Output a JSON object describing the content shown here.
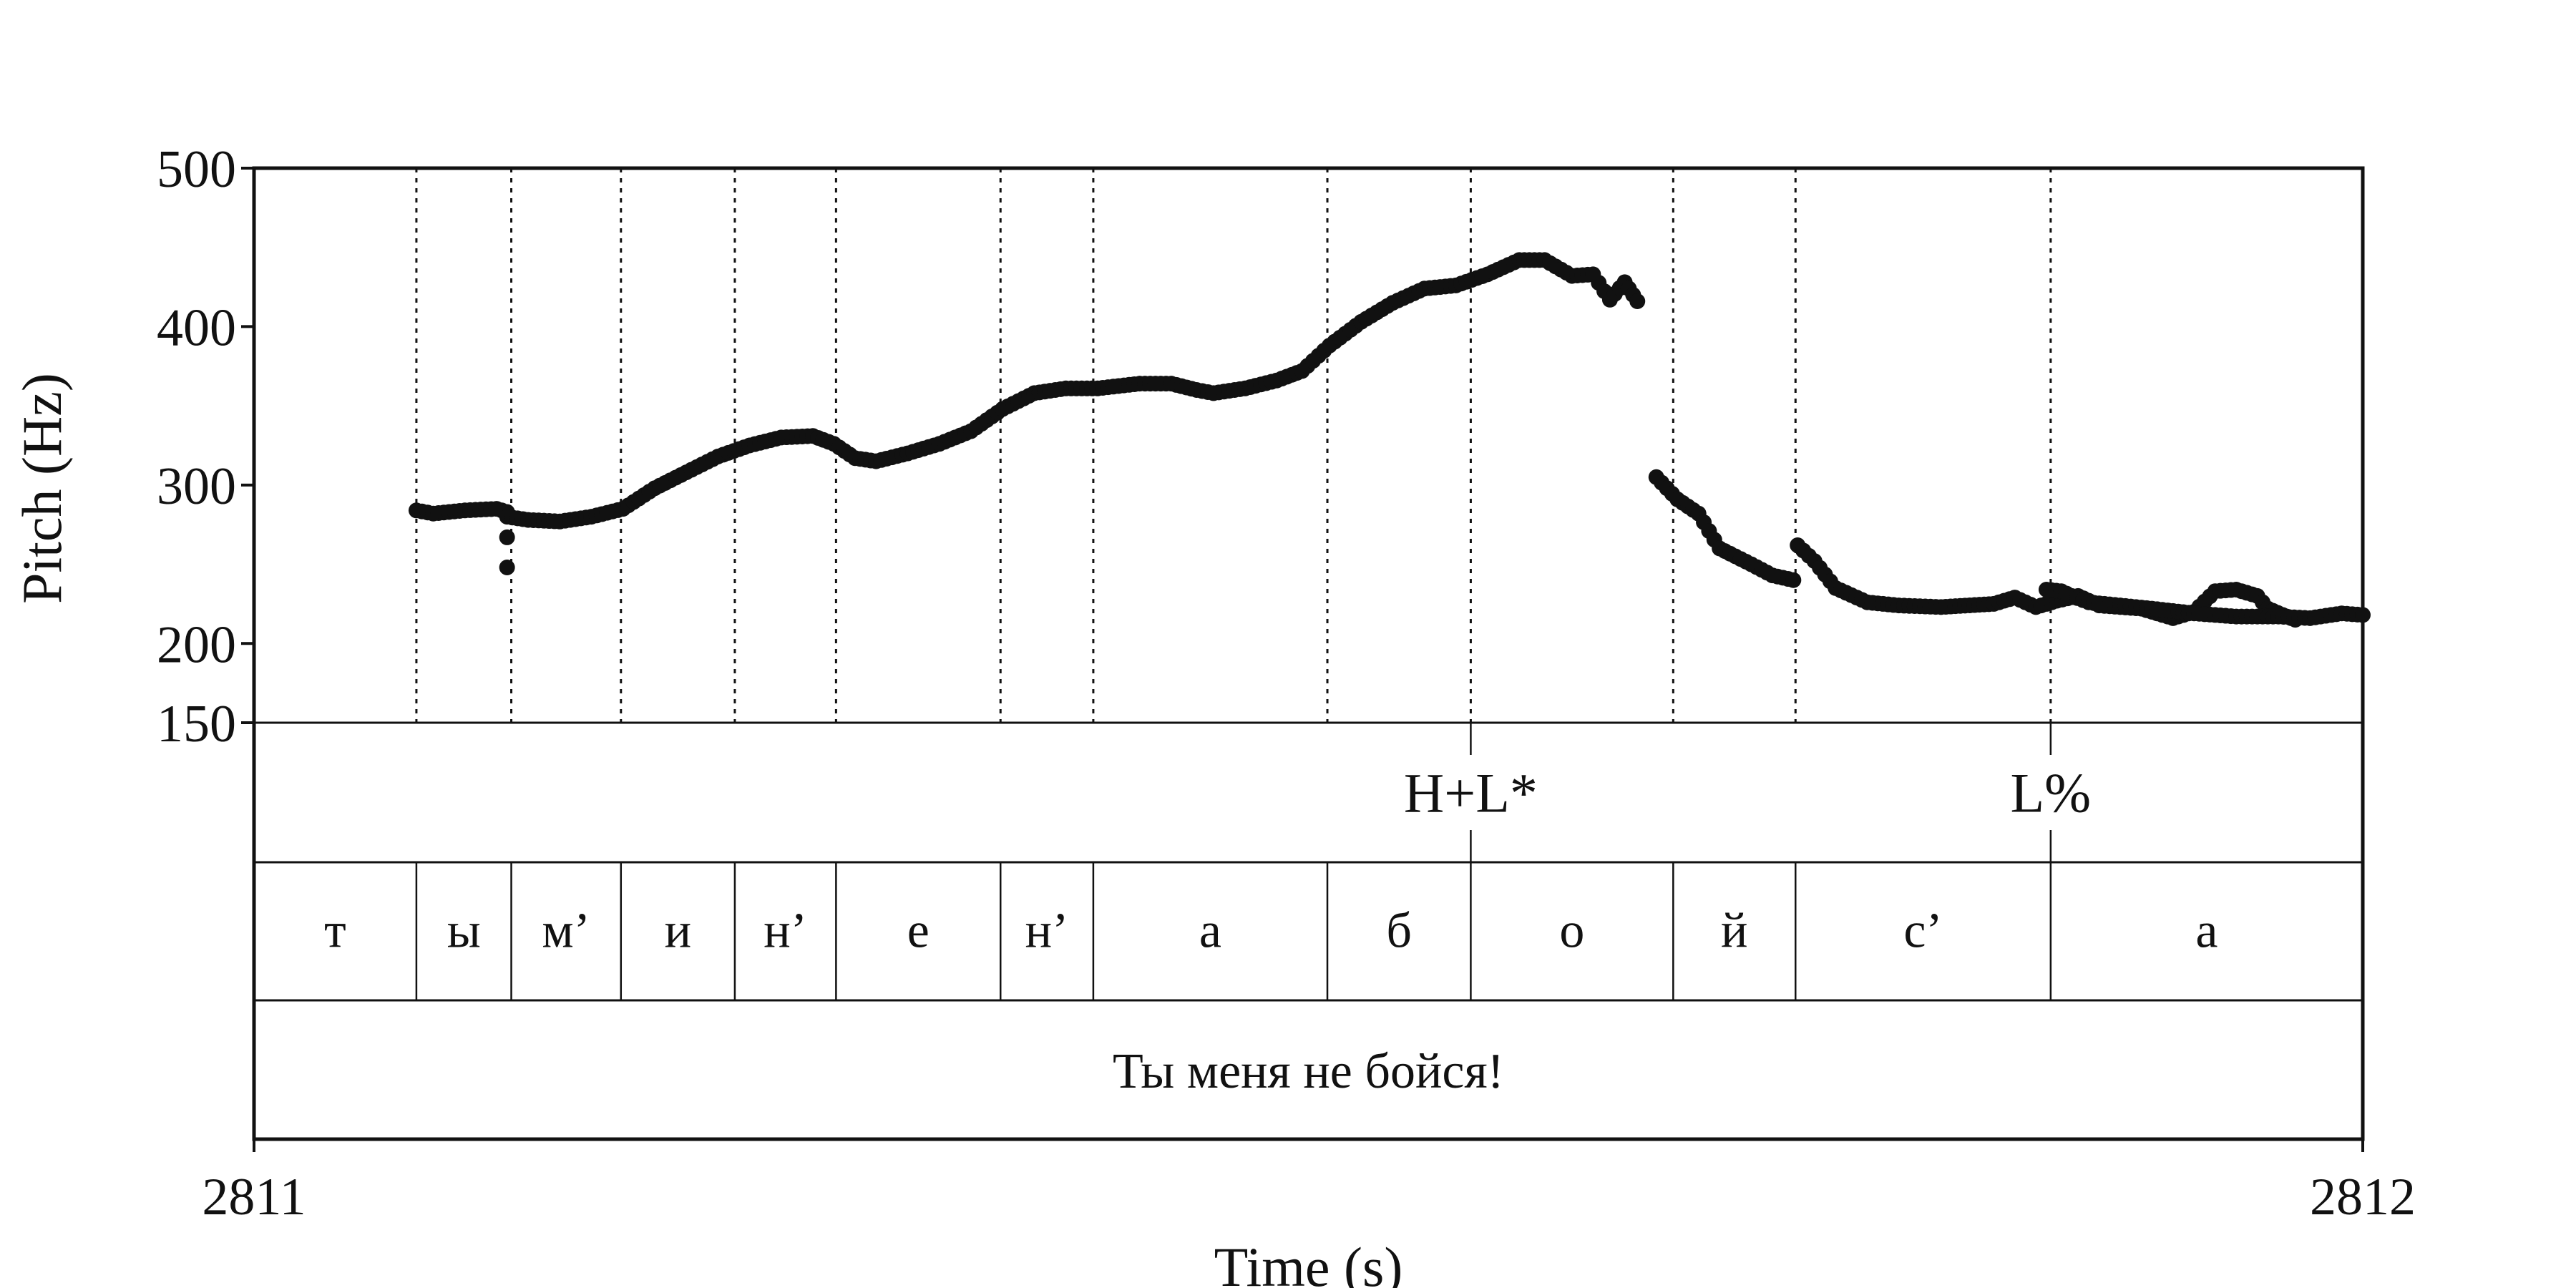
{
  "chart_data": {
    "type": "scatter",
    "ylabel": "Pitch (Hz)",
    "xlabel": "Time (s)",
    "xlim": [
      2811,
      2812
    ],
    "ylim": [
      150,
      500
    ],
    "xticks": [
      "2811",
      "2812"
    ],
    "yticks": [
      {
        "value": 500,
        "label": "500"
      },
      {
        "value": 400,
        "label": "400"
      },
      {
        "value": 300,
        "label": "300"
      },
      {
        "value": 200,
        "label": "200"
      },
      {
        "value": 150,
        "label": "150"
      }
    ],
    "pitch_series": [
      [
        [
          2811.077,
          284
        ],
        [
          2811.085,
          282
        ],
        [
          2811.1,
          284
        ],
        [
          2811.115,
          285
        ],
        [
          2811.12,
          283
        ]
      ],
      [
        [
          2811.12,
          280
        ],
        [
          2811.13,
          278
        ],
        [
          2811.145,
          277
        ],
        [
          2811.16,
          280
        ],
        [
          2811.175,
          285
        ],
        [
          2811.19,
          298
        ],
        [
          2811.205,
          308
        ],
        [
          2811.22,
          318
        ],
        [
          2811.235,
          325
        ],
        [
          2811.25,
          330
        ],
        [
          2811.265,
          331
        ],
        [
          2811.275,
          326
        ],
        [
          2811.285,
          317
        ],
        [
          2811.295,
          315
        ],
        [
          2811.31,
          320
        ],
        [
          2811.325,
          326
        ],
        [
          2811.34,
          334
        ],
        [
          2811.355,
          348
        ],
        [
          2811.37,
          358
        ],
        [
          2811.385,
          361
        ],
        [
          2811.4,
          361
        ],
        [
          2811.42,
          364
        ],
        [
          2811.435,
          364
        ],
        [
          2811.447,
          360
        ],
        [
          2811.455,
          358
        ],
        [
          2811.47,
          361
        ],
        [
          2811.485,
          366
        ],
        [
          2811.497,
          372
        ],
        [
          2811.51,
          388
        ],
        [
          2811.525,
          403
        ],
        [
          2811.54,
          415
        ],
        [
          2811.555,
          424
        ],
        [
          2811.57,
          426
        ],
        [
          2811.585,
          433
        ],
        [
          2811.6,
          442
        ],
        [
          2811.612,
          442
        ],
        [
          2811.625,
          432
        ],
        [
          2811.635,
          433
        ],
        [
          2811.643,
          417
        ],
        [
          2811.65,
          428
        ],
        [
          2811.656,
          416
        ]
      ],
      [
        [
          2811.665,
          305
        ],
        [
          2811.675,
          291
        ],
        [
          2811.685,
          282
        ],
        [
          2811.695,
          260
        ],
        [
          2811.71,
          250
        ],
        [
          2811.72,
          243
        ],
        [
          2811.73,
          240
        ]
      ],
      [
        [
          2811.732,
          262
        ],
        [
          2811.74,
          252
        ],
        [
          2811.75,
          235
        ],
        [
          2811.765,
          226
        ],
        [
          2811.78,
          224
        ],
        [
          2811.8,
          223
        ],
        [
          2811.825,
          225
        ],
        [
          2811.835,
          229
        ],
        [
          2811.845,
          223
        ],
        [
          2811.855,
          227
        ],
        [
          2811.865,
          230
        ],
        [
          2811.875,
          224
        ],
        [
          2811.895,
          222
        ],
        [
          2811.91,
          216
        ],
        [
          2811.92,
          220
        ],
        [
          2811.93,
          233
        ],
        [
          2811.94,
          234
        ],
        [
          2811.95,
          230
        ],
        [
          2811.955,
          222
        ],
        [
          2811.962,
          218
        ],
        [
          2811.968,
          215
        ]
      ],
      [
        [
          2811.857,
          232
        ],
        [
          2811.862,
          233
        ],
        [
          2811.868,
          233
        ]
      ],
      [
        [
          2811.85,
          232
        ]
      ],
      [
        [
          2811.852,
          232
        ]
      ]
    ],
    "pitch_series_last": [
      [
        2811.85,
        234
      ],
      [
        2811.857,
        233
      ],
      [
        2811.862,
        230
      ],
      [
        2811.87,
        226
      ],
      [
        2811.885,
        224
      ],
      [
        2811.9,
        222
      ],
      [
        2811.92,
        219
      ],
      [
        2811.94,
        217
      ],
      [
        2811.96,
        217
      ],
      [
        2811.975,
        216
      ],
      [
        2811.99,
        219
      ],
      [
        2812.0,
        218
      ]
    ],
    "stray_points": [
      [
        2811.12,
        267
      ],
      [
        2811.12,
        248
      ]
    ],
    "boundaries": [
      2811.077,
      2811.122,
      2811.174,
      2811.228,
      2811.276,
      2811.354,
      2811.398,
      2811.509,
      2811.577,
      2811.673,
      2811.731,
      2811.852
    ],
    "tones": [
      {
        "label": "H+L*",
        "time": 2811.577
      },
      {
        "label": "L%",
        "time": 2811.852
      }
    ],
    "segments": [
      {
        "label": "т",
        "start": 2811.0,
        "end": 2811.077
      },
      {
        "label": "ы",
        "start": 2811.077,
        "end": 2811.122
      },
      {
        "label": "м’",
        "start": 2811.122,
        "end": 2811.174
      },
      {
        "label": "и",
        "start": 2811.174,
        "end": 2811.228
      },
      {
        "label": "н’",
        "start": 2811.228,
        "end": 2811.276
      },
      {
        "label": "е",
        "start": 2811.276,
        "end": 2811.354
      },
      {
        "label": "н’",
        "start": 2811.354,
        "end": 2811.398
      },
      {
        "label": "а",
        "start": 2811.398,
        "end": 2811.509
      },
      {
        "label": "б",
        "start": 2811.509,
        "end": 2811.577
      },
      {
        "label": "о",
        "start": 2811.577,
        "end": 2811.673
      },
      {
        "label": "й",
        "start": 2811.673,
        "end": 2811.731
      },
      {
        "label": "с’",
        "start": 2811.731,
        "end": 2811.852
      },
      {
        "label": "а",
        "start": 2811.852,
        "end": 2812.0
      }
    ],
    "sentence": "Ты меня не бойся!"
  }
}
